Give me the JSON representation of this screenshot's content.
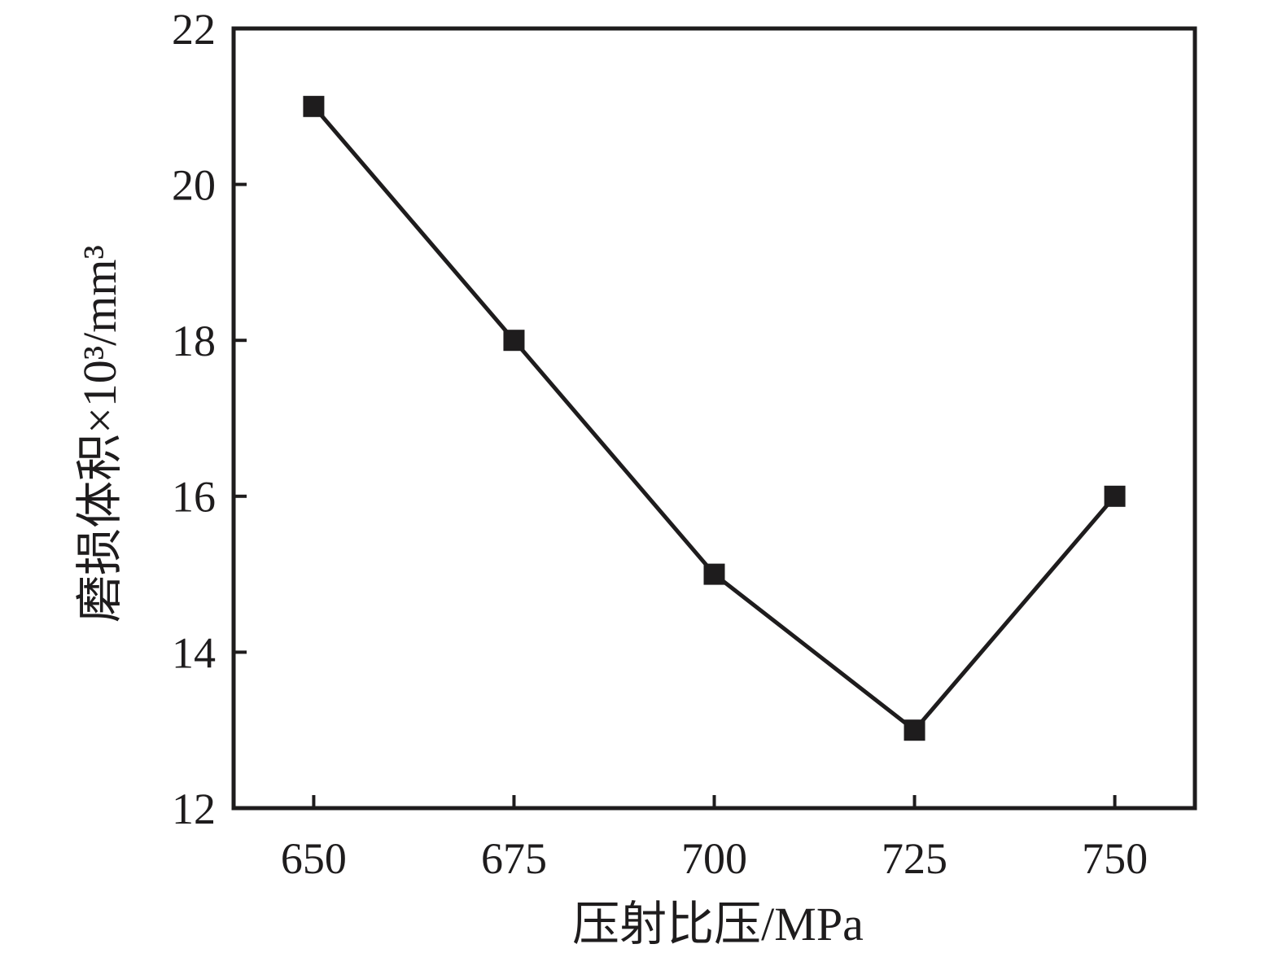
{
  "figure": {
    "background": "#ffffff",
    "ink_color": "#1e1c1d"
  },
  "chart_data": {
    "type": "line",
    "title": "",
    "xlabel": "压射比压/MPa",
    "ylabel": "磨损体积×10³/mm³",
    "x": [
      650,
      675,
      700,
      725,
      750
    ],
    "series": [
      {
        "name": "磨损体积",
        "values": [
          21,
          18,
          15,
          13,
          16
        ],
        "marker": "filled-square",
        "color": "#1e1c1d"
      }
    ],
    "x_ticks": [
      650,
      675,
      700,
      725,
      750
    ],
    "y_ticks": [
      12,
      14,
      16,
      18,
      20,
      22
    ],
    "xlim": [
      640,
      760
    ],
    "ylim": [
      12,
      22
    ],
    "grid": false,
    "legend": "none",
    "frame": "full-box",
    "tick_direction": "in"
  }
}
